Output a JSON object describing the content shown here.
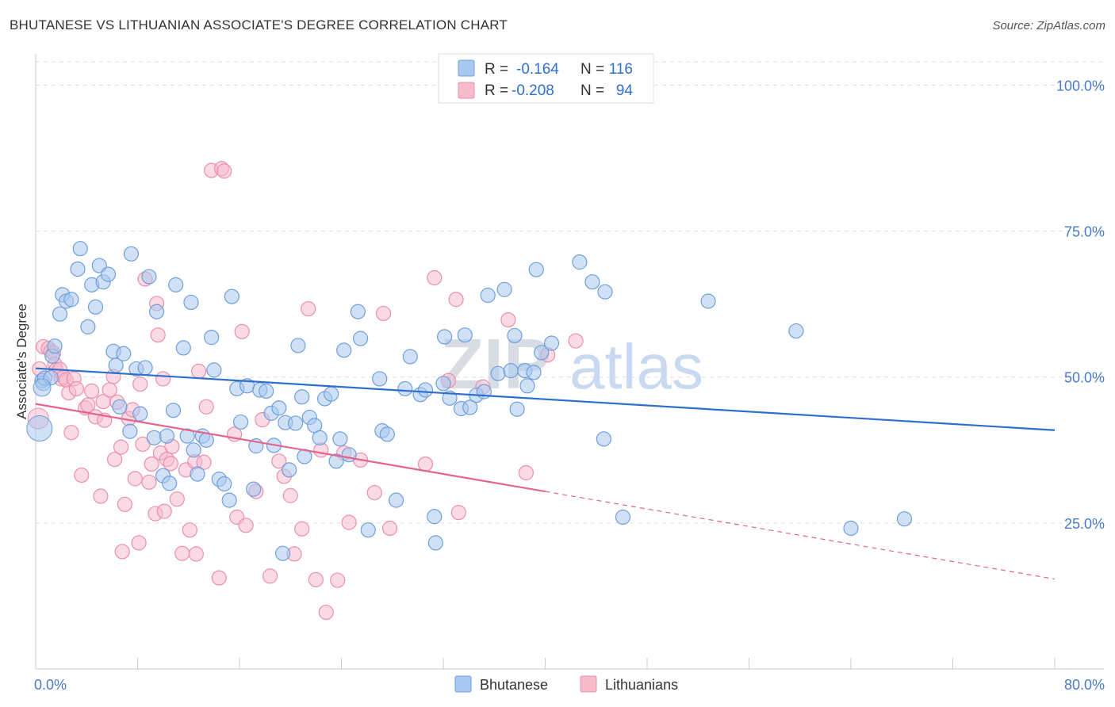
{
  "title": "BHUTANESE VS LITHUANIAN ASSOCIATE'S DEGREE CORRELATION CHART",
  "source": "Source: ZipAtlas.com",
  "watermark": {
    "zip": "ZIP",
    "atlas": "atlas"
  },
  "colors": {
    "bhutanese_fill": "#a9c8ef",
    "bhutanese_stroke": "#6f9fdc",
    "bhutanese_line": "#2e6fce",
    "lithuanian_fill": "#f6bccd",
    "lithuanian_stroke": "#ec8fab",
    "lithuanian_line": "#e5648e",
    "tick_label": "#4a7cc9",
    "grid": "#dddddd"
  },
  "legend": {
    "rows": [
      {
        "r_label": "R =",
        "r_value": "-0.164",
        "n_label": "N =",
        "n_value": "116"
      },
      {
        "r_label": "R =",
        "r_value": "-0.208",
        "n_label": "N =",
        "n_value": "94"
      }
    ]
  },
  "bottom_legend": [
    "Bhutanese",
    "Lithuanians"
  ],
  "chart_data": {
    "type": "scatter",
    "title": "BHUTANESE VS LITHUANIAN ASSOCIATE'S DEGREE CORRELATION CHART",
    "xlabel": "",
    "ylabel": "Associate's Degree",
    "x_tick_labels": [
      "0.0%",
      "80.0%"
    ],
    "y_tick_labels": [
      "100.0%",
      "75.0%",
      "50.0%",
      "25.0%"
    ],
    "y_ticks": [
      100,
      75,
      50,
      25
    ],
    "xlim": [
      0,
      80
    ],
    "ylim": [
      0,
      104
    ],
    "grid": true,
    "legend_position": "top-center",
    "series": [
      {
        "name": "Bhutanese",
        "regression": {
          "x": [
            0,
            80
          ],
          "y": [
            51.5,
            40.9
          ],
          "dashed_from": null
        },
        "points": [
          [
            0.5,
            49.4
          ],
          [
            0.6,
            48.9
          ],
          [
            0.7,
            49.8
          ],
          [
            1.2,
            49.9
          ],
          [
            1.3,
            53.6
          ],
          [
            1.5,
            55.3
          ],
          [
            1.9,
            60.8
          ],
          [
            2.1,
            64.1
          ],
          [
            2.4,
            63.0
          ],
          [
            2.8,
            63.3
          ],
          [
            3.3,
            68.5
          ],
          [
            3.5,
            72.0
          ],
          [
            4.1,
            58.6
          ],
          [
            4.4,
            65.8
          ],
          [
            4.7,
            62.0
          ],
          [
            5.0,
            69.1
          ],
          [
            5.3,
            66.3
          ],
          [
            5.7,
            67.6
          ],
          [
            6.1,
            54.4
          ],
          [
            6.3,
            52.0
          ],
          [
            6.6,
            44.9
          ],
          [
            6.9,
            54.0
          ],
          [
            7.4,
            40.7
          ],
          [
            7.5,
            71.1
          ],
          [
            7.9,
            51.4
          ],
          [
            8.2,
            43.7
          ],
          [
            8.6,
            51.6
          ],
          [
            8.9,
            67.2
          ],
          [
            9.3,
            39.6
          ],
          [
            9.5,
            61.2
          ],
          [
            10.0,
            33.1
          ],
          [
            10.3,
            39.9
          ],
          [
            10.5,
            31.8
          ],
          [
            10.8,
            44.3
          ],
          [
            11.0,
            65.8
          ],
          [
            11.6,
            55.0
          ],
          [
            11.9,
            39.9
          ],
          [
            12.2,
            62.8
          ],
          [
            12.4,
            37.5
          ],
          [
            12.7,
            33.4
          ],
          [
            13.1,
            39.9
          ],
          [
            13.4,
            39.2
          ],
          [
            13.8,
            56.8
          ],
          [
            14.0,
            51.2
          ],
          [
            14.4,
            32.5
          ],
          [
            14.8,
            31.7
          ],
          [
            15.2,
            28.9
          ],
          [
            15.4,
            63.8
          ],
          [
            15.8,
            48.0
          ],
          [
            16.1,
            42.3
          ],
          [
            16.6,
            48.5
          ],
          [
            17.1,
            30.8
          ],
          [
            17.3,
            38.2
          ],
          [
            17.6,
            47.8
          ],
          [
            18.1,
            47.6
          ],
          [
            18.5,
            43.8
          ],
          [
            18.7,
            38.3
          ],
          [
            19.1,
            44.7
          ],
          [
            19.4,
            19.8
          ],
          [
            19.6,
            42.2
          ],
          [
            19.9,
            34.1
          ],
          [
            20.4,
            42.1
          ],
          [
            20.6,
            55.4
          ],
          [
            20.9,
            46.6
          ],
          [
            21.1,
            36.4
          ],
          [
            21.5,
            43.1
          ],
          [
            21.9,
            41.7
          ],
          [
            22.3,
            39.6
          ],
          [
            22.7,
            46.3
          ],
          [
            23.2,
            47.1
          ],
          [
            23.6,
            35.6
          ],
          [
            23.9,
            39.4
          ],
          [
            24.2,
            54.6
          ],
          [
            24.6,
            36.7
          ],
          [
            25.3,
            61.2
          ],
          [
            25.5,
            56.6
          ],
          [
            26.1,
            23.8
          ],
          [
            27.0,
            49.7
          ],
          [
            27.2,
            40.8
          ],
          [
            27.6,
            40.2
          ],
          [
            28.3,
            28.9
          ],
          [
            29.0,
            48.0
          ],
          [
            29.4,
            53.5
          ],
          [
            30.2,
            47.0
          ],
          [
            30.6,
            47.8
          ],
          [
            31.3,
            26.1
          ],
          [
            31.4,
            21.6
          ],
          [
            32.0,
            48.9
          ],
          [
            32.1,
            56.9
          ],
          [
            32.5,
            46.4
          ],
          [
            33.4,
            44.6
          ],
          [
            33.7,
            57.2
          ],
          [
            34.1,
            44.8
          ],
          [
            34.6,
            46.9
          ],
          [
            35.2,
            47.5
          ],
          [
            35.5,
            64.0
          ],
          [
            36.3,
            50.6
          ],
          [
            36.8,
            65.0
          ],
          [
            37.3,
            51.1
          ],
          [
            37.6,
            57.1
          ],
          [
            37.8,
            44.5
          ],
          [
            38.4,
            51.1
          ],
          [
            38.6,
            48.5
          ],
          [
            39.1,
            50.8
          ],
          [
            39.3,
            68.4
          ],
          [
            39.7,
            54.2
          ],
          [
            40.5,
            55.8
          ],
          [
            42.7,
            69.7
          ],
          [
            43.7,
            66.3
          ],
          [
            44.6,
            39.4
          ],
          [
            44.7,
            64.6
          ],
          [
            46.1,
            26.0
          ],
          [
            52.8,
            63.0
          ],
          [
            59.7,
            57.9
          ],
          [
            64.0,
            24.1
          ],
          [
            68.2,
            25.7
          ]
        ]
      },
      {
        "name": "Lithuanians",
        "regression": {
          "x": [
            0,
            80
          ],
          "y": [
            45.4,
            15.4
          ],
          "dashed_from": 40
        },
        "points": [
          [
            0.3,
            51.4
          ],
          [
            0.6,
            55.2
          ],
          [
            1.0,
            54.9
          ],
          [
            1.2,
            54.4
          ],
          [
            1.4,
            54.1
          ],
          [
            1.5,
            52.2
          ],
          [
            1.6,
            51.2
          ],
          [
            1.9,
            51.3
          ],
          [
            2.0,
            49.7
          ],
          [
            2.2,
            50.0
          ],
          [
            2.4,
            49.5
          ],
          [
            2.6,
            47.3
          ],
          [
            2.8,
            40.5
          ],
          [
            3.0,
            49.7
          ],
          [
            3.2,
            48.0
          ],
          [
            3.6,
            33.2
          ],
          [
            3.9,
            44.7
          ],
          [
            4.1,
            45.2
          ],
          [
            4.4,
            47.6
          ],
          [
            4.7,
            43.2
          ],
          [
            5.1,
            29.6
          ],
          [
            5.3,
            45.8
          ],
          [
            5.4,
            42.6
          ],
          [
            5.8,
            47.8
          ],
          [
            6.1,
            50.1
          ],
          [
            6.2,
            35.9
          ],
          [
            6.4,
            45.7
          ],
          [
            6.7,
            38.0
          ],
          [
            6.8,
            20.1
          ],
          [
            7.0,
            28.2
          ],
          [
            7.3,
            42.9
          ],
          [
            7.6,
            44.4
          ],
          [
            7.8,
            32.6
          ],
          [
            8.1,
            21.6
          ],
          [
            8.2,
            48.8
          ],
          [
            8.4,
            38.5
          ],
          [
            8.6,
            66.8
          ],
          [
            8.9,
            32.0
          ],
          [
            9.1,
            35.1
          ],
          [
            9.4,
            26.6
          ],
          [
            9.5,
            62.6
          ],
          [
            9.6,
            57.2
          ],
          [
            9.8,
            37.0
          ],
          [
            10.0,
            49.7
          ],
          [
            10.1,
            27.0
          ],
          [
            10.3,
            35.9
          ],
          [
            10.6,
            35.2
          ],
          [
            10.7,
            38.1
          ],
          [
            11.1,
            29.1
          ],
          [
            11.5,
            19.8
          ],
          [
            11.8,
            34.1
          ],
          [
            12.1,
            23.8
          ],
          [
            12.5,
            35.5
          ],
          [
            12.6,
            19.7
          ],
          [
            12.8,
            51.0
          ],
          [
            13.2,
            35.4
          ],
          [
            13.4,
            44.9
          ],
          [
            13.8,
            85.4
          ],
          [
            14.6,
            85.7
          ],
          [
            14.8,
            85.3
          ],
          [
            14.4,
            15.6
          ],
          [
            15.6,
            40.2
          ],
          [
            15.8,
            26.0
          ],
          [
            16.2,
            57.8
          ],
          [
            16.5,
            24.6
          ],
          [
            17.3,
            30.4
          ],
          [
            17.8,
            42.7
          ],
          [
            18.4,
            15.9
          ],
          [
            19.1,
            35.6
          ],
          [
            19.5,
            33.0
          ],
          [
            20.0,
            29.7
          ],
          [
            20.3,
            19.7
          ],
          [
            20.9,
            24.0
          ],
          [
            21.4,
            61.7
          ],
          [
            22.0,
            15.3
          ],
          [
            22.4,
            37.5
          ],
          [
            22.8,
            9.7
          ],
          [
            23.7,
            15.2
          ],
          [
            24.2,
            37.0
          ],
          [
            24.6,
            25.1
          ],
          [
            25.5,
            35.8
          ],
          [
            26.6,
            30.2
          ],
          [
            27.3,
            60.9
          ],
          [
            27.8,
            24.1
          ],
          [
            30.6,
            35.1
          ],
          [
            31.3,
            67.0
          ],
          [
            32.4,
            49.4
          ],
          [
            33.0,
            63.3
          ],
          [
            33.2,
            26.8
          ],
          [
            35.1,
            48.3
          ],
          [
            37.1,
            59.8
          ],
          [
            38.5,
            33.6
          ],
          [
            40.2,
            53.8
          ],
          [
            42.4,
            56.2
          ]
        ]
      }
    ]
  }
}
